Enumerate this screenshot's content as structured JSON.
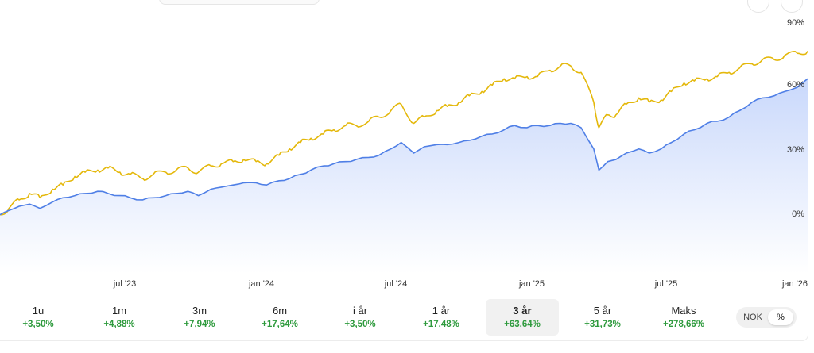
{
  "chart_data": {
    "type": "line",
    "y_ticks": [
      "90%",
      "60%",
      "30%",
      "0%"
    ],
    "x_ticks": [
      "jul '23",
      "jan '24",
      "jul '24",
      "jan '25",
      "jul '25",
      "jan '26"
    ],
    "ylim": [
      -30,
      90
    ],
    "grid": false,
    "series": [
      {
        "color": "#e4b80b",
        "area": false,
        "points": [
          [
            "2023-01-20",
            -1
          ],
          [
            "2023-02-01",
            2
          ],
          [
            "2023-02-15",
            6
          ],
          [
            "2023-03-01",
            9
          ],
          [
            "2023-03-15",
            7
          ],
          [
            "2023-04-01",
            11
          ],
          [
            "2023-04-15",
            13
          ],
          [
            "2023-05-01",
            17
          ],
          [
            "2023-05-15",
            19
          ],
          [
            "2023-06-01",
            20
          ],
          [
            "2023-06-15",
            21
          ],
          [
            "2023-07-01",
            19
          ],
          [
            "2023-07-15",
            18
          ],
          [
            "2023-08-01",
            16
          ],
          [
            "2023-08-15",
            18
          ],
          [
            "2023-09-01",
            19
          ],
          [
            "2023-09-15",
            20
          ],
          [
            "2023-10-01",
            21
          ],
          [
            "2023-10-15",
            19
          ],
          [
            "2023-11-01",
            22
          ],
          [
            "2023-11-15",
            23
          ],
          [
            "2023-12-01",
            24
          ],
          [
            "2023-12-15",
            25
          ],
          [
            "2024-01-01",
            24
          ],
          [
            "2024-01-15",
            23
          ],
          [
            "2024-02-01",
            27
          ],
          [
            "2024-02-15",
            30
          ],
          [
            "2024-03-01",
            33
          ],
          [
            "2024-03-15",
            35
          ],
          [
            "2024-04-01",
            37
          ],
          [
            "2024-04-15",
            39
          ],
          [
            "2024-05-01",
            41
          ],
          [
            "2024-05-15",
            41
          ],
          [
            "2024-06-01",
            43
          ],
          [
            "2024-06-15",
            45
          ],
          [
            "2024-07-01",
            48
          ],
          [
            "2024-07-15",
            51
          ],
          [
            "2024-08-01",
            42
          ],
          [
            "2024-08-15",
            45
          ],
          [
            "2024-09-01",
            48
          ],
          [
            "2024-09-15",
            50
          ],
          [
            "2024-10-01",
            52
          ],
          [
            "2024-10-15",
            55
          ],
          [
            "2024-11-01",
            57
          ],
          [
            "2024-11-15",
            60
          ],
          [
            "2024-12-01",
            63
          ],
          [
            "2024-12-15",
            63
          ],
          [
            "2025-01-01",
            64
          ],
          [
            "2025-01-15",
            64
          ],
          [
            "2025-02-01",
            67
          ],
          [
            "2025-02-15",
            69
          ],
          [
            "2025-03-01",
            69
          ],
          [
            "2025-03-15",
            66
          ],
          [
            "2025-04-01",
            52
          ],
          [
            "2025-04-08",
            40
          ],
          [
            "2025-04-20",
            46
          ],
          [
            "2025-05-01",
            46
          ],
          [
            "2025-05-15",
            51
          ],
          [
            "2025-06-01",
            54
          ],
          [
            "2025-06-15",
            52
          ],
          [
            "2025-07-01",
            53
          ],
          [
            "2025-07-15",
            57
          ],
          [
            "2025-08-01",
            61
          ],
          [
            "2025-08-15",
            62
          ],
          [
            "2025-09-01",
            63
          ],
          [
            "2025-09-15",
            64
          ],
          [
            "2025-10-01",
            66
          ],
          [
            "2025-10-15",
            68
          ],
          [
            "2025-11-01",
            70
          ],
          [
            "2025-11-15",
            72
          ],
          [
            "2025-12-01",
            72
          ],
          [
            "2025-12-15",
            74
          ],
          [
            "2026-01-01",
            75
          ],
          [
            "2026-01-15",
            76
          ]
        ]
      },
      {
        "color": "#4f7fe6",
        "area": true,
        "points": [
          [
            "2023-01-20",
            -1
          ],
          [
            "2023-02-01",
            1
          ],
          [
            "2023-02-15",
            3
          ],
          [
            "2023-03-01",
            4
          ],
          [
            "2023-03-15",
            2
          ],
          [
            "2023-04-01",
            5
          ],
          [
            "2023-04-15",
            7
          ],
          [
            "2023-05-01",
            8
          ],
          [
            "2023-05-15",
            9
          ],
          [
            "2023-06-01",
            10
          ],
          [
            "2023-06-15",
            9
          ],
          [
            "2023-07-01",
            8
          ],
          [
            "2023-07-15",
            7
          ],
          [
            "2023-08-01",
            6
          ],
          [
            "2023-08-15",
            7
          ],
          [
            "2023-09-01",
            8
          ],
          [
            "2023-09-15",
            9
          ],
          [
            "2023-10-01",
            10
          ],
          [
            "2023-10-15",
            8
          ],
          [
            "2023-11-01",
            11
          ],
          [
            "2023-11-15",
            12
          ],
          [
            "2023-12-01",
            13
          ],
          [
            "2023-12-15",
            14
          ],
          [
            "2024-01-01",
            14
          ],
          [
            "2024-01-15",
            13
          ],
          [
            "2024-02-01",
            15
          ],
          [
            "2024-02-15",
            16
          ],
          [
            "2024-03-01",
            18
          ],
          [
            "2024-03-15",
            20
          ],
          [
            "2024-04-01",
            22
          ],
          [
            "2024-04-15",
            23
          ],
          [
            "2024-05-01",
            24
          ],
          [
            "2024-05-15",
            25
          ],
          [
            "2024-06-01",
            26
          ],
          [
            "2024-06-15",
            27
          ],
          [
            "2024-07-01",
            30
          ],
          [
            "2024-07-15",
            33
          ],
          [
            "2024-08-01",
            28
          ],
          [
            "2024-08-15",
            31
          ],
          [
            "2024-09-01",
            32
          ],
          [
            "2024-09-15",
            32
          ],
          [
            "2024-10-01",
            33
          ],
          [
            "2024-10-15",
            34
          ],
          [
            "2024-11-01",
            36
          ],
          [
            "2024-11-15",
            37
          ],
          [
            "2024-12-01",
            39
          ],
          [
            "2024-12-15",
            41
          ],
          [
            "2025-01-01",
            40
          ],
          [
            "2025-01-15",
            41
          ],
          [
            "2025-02-01",
            41
          ],
          [
            "2025-02-15",
            42
          ],
          [
            "2025-03-01",
            42
          ],
          [
            "2025-03-15",
            40
          ],
          [
            "2025-04-01",
            30
          ],
          [
            "2025-04-08",
            20
          ],
          [
            "2025-04-20",
            24
          ],
          [
            "2025-05-01",
            25
          ],
          [
            "2025-05-15",
            28
          ],
          [
            "2025-06-01",
            30
          ],
          [
            "2025-06-15",
            28
          ],
          [
            "2025-07-01",
            30
          ],
          [
            "2025-07-15",
            33
          ],
          [
            "2025-08-01",
            37
          ],
          [
            "2025-08-15",
            39
          ],
          [
            "2025-09-01",
            42
          ],
          [
            "2025-09-15",
            43
          ],
          [
            "2025-10-01",
            45
          ],
          [
            "2025-10-15",
            48
          ],
          [
            "2025-11-01",
            52
          ],
          [
            "2025-11-15",
            54
          ],
          [
            "2025-12-01",
            55
          ],
          [
            "2025-12-15",
            57
          ],
          [
            "2026-01-01",
            59
          ],
          [
            "2026-01-15",
            63
          ]
        ]
      }
    ]
  },
  "periods": [
    {
      "label": "1u",
      "value": "+3,50%"
    },
    {
      "label": "1m",
      "value": "+4,88%"
    },
    {
      "label": "3m",
      "value": "+7,94%"
    },
    {
      "label": "6m",
      "value": "+17,64%"
    },
    {
      "label": "i år",
      "value": "+3,50%"
    },
    {
      "label": "1 år",
      "value": "+17,48%"
    },
    {
      "label": "3 år",
      "value": "+63,64%"
    },
    {
      "label": "5 år",
      "value": "+31,73%"
    },
    {
      "label": "Maks",
      "value": "+278,66%"
    }
  ],
  "selected_period": "3 år",
  "unit_toggle": {
    "options": [
      "NOK",
      "%"
    ],
    "selected": "%"
  }
}
